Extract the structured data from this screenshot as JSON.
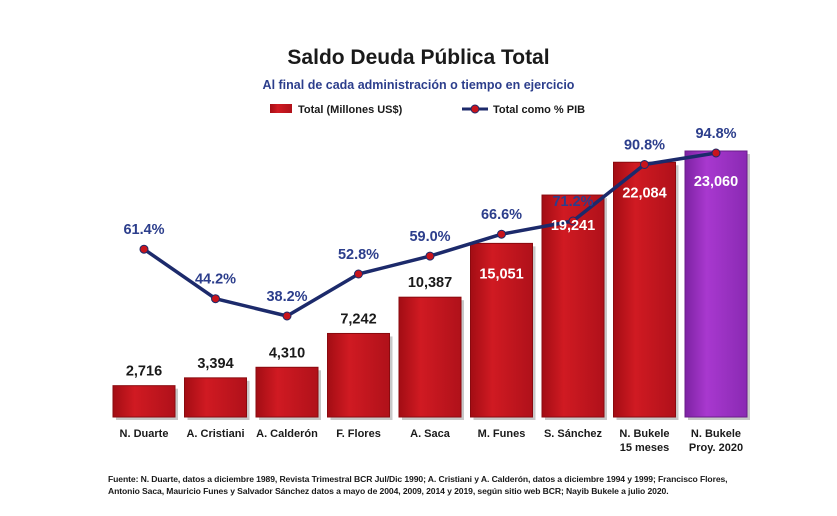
{
  "chart_data": {
    "type": "bar",
    "title": "Saldo Deuda Pública Total",
    "subtitle": "Al final de cada administración o tiempo en ejercicio",
    "categories": [
      [
        "N. Duarte"
      ],
      [
        "A. Cristiani"
      ],
      [
        "A. Calderón"
      ],
      [
        "F. Flores"
      ],
      [
        "A. Saca"
      ],
      [
        "M. Funes"
      ],
      [
        "S. Sánchez"
      ],
      [
        "N. Bukele",
        "15 meses"
      ],
      [
        "N. Bukele",
        "Proy. 2020"
      ]
    ],
    "series": [
      {
        "name": "Total (Millones US$)",
        "type": "bar",
        "values": [
          2716,
          3394,
          4310,
          7242,
          10387,
          15051,
          19241,
          22084,
          23060
        ],
        "labels": [
          "2,716",
          "3,394",
          "4,310",
          "7,242",
          "10,387",
          "15,051",
          "19,241",
          "22,084",
          "23,060"
        ]
      },
      {
        "name": "Total como % PIB",
        "type": "line",
        "values": [
          61.4,
          44.2,
          38.2,
          52.8,
          59.0,
          66.6,
          71.2,
          90.8,
          94.8
        ],
        "labels": [
          "61.4%",
          "44.2%",
          "38.2%",
          "52.8%",
          "59.0%",
          "66.6%",
          "71.2%",
          "90.8%",
          "94.8%"
        ]
      }
    ],
    "bar_ylim": [
      0,
      23060
    ],
    "line_ylim": [
      38.2,
      94.8
    ],
    "grid": false,
    "legend_position": "top-center"
  },
  "colors": {
    "bar": "#c8141c",
    "bar_dark": "#8a0a0f",
    "bar_highlight": "#9b2fc0",
    "bar_highlight_dark": "#6a1c8a",
    "line": "#1c2a6b",
    "marker": "#c8141c",
    "pct_label": "#2c3e8c",
    "value_label_dark": "#1a1a1a",
    "value_label_light": "#ffffff"
  },
  "footnote": {
    "line1": "Fuente: N. Duarte, datos a diciembre 1989, Revista Trimestral BCR Jul/Dic 1990; A. Cristiani y A. Calderón, datos a diciembre 1994 y 1999; Francisco Flores,",
    "line2": "Antonio Saca, Mauricio Funes y Salvador Sánchez datos a mayo de 2004, 2009, 2014 y 2019, según sitio web BCR; Nayib Bukele a julio 2020."
  }
}
